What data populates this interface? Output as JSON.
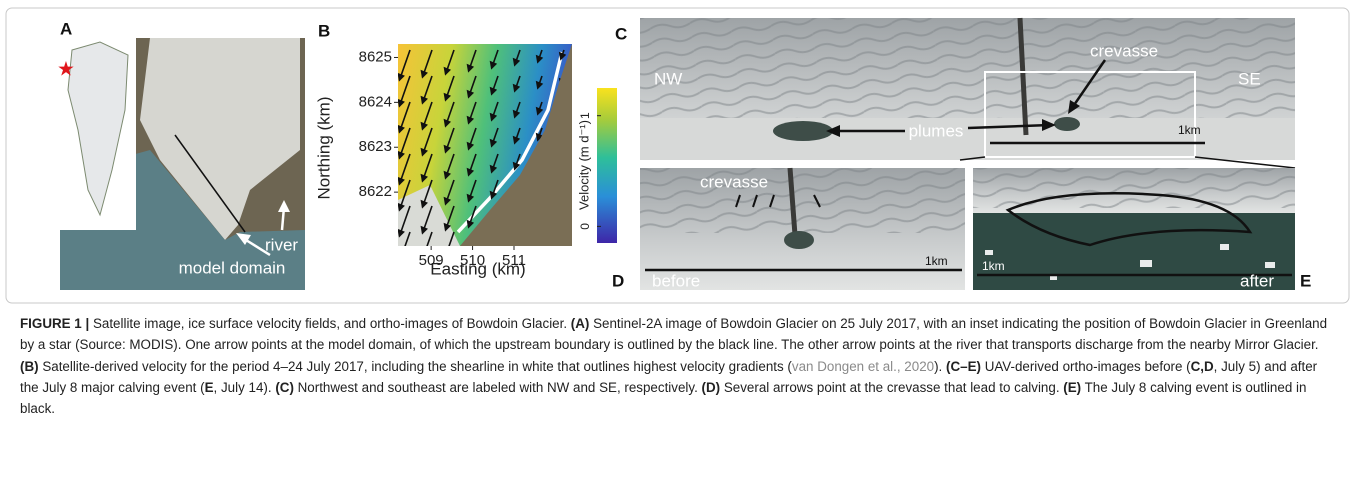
{
  "panels": {
    "a": {
      "label": "A",
      "river": "river",
      "model_domain": "model domain"
    },
    "b": {
      "label": "B",
      "ylabel": "Northing (km)",
      "xlabel": "Easting (km)",
      "yticks": [
        8622,
        8623,
        8624,
        8625
      ],
      "ylim": [
        8620.8,
        8625.3
      ],
      "xticks": [
        509,
        510,
        511
      ],
      "xlim": [
        508.2,
        512.4
      ],
      "colorbar": {
        "label": "Velocity (m d⁻¹)",
        "ticks": [
          0,
          1
        ],
        "lim": [
          -0.15,
          1.25
        ]
      }
    },
    "c": {
      "label": "C",
      "nw": "NW",
      "se": "SE",
      "crevasse": "crevasse",
      "plumes": "plumes",
      "scale": "1km"
    },
    "d": {
      "label": "D",
      "crevasse": "crevasse",
      "before": "before",
      "scale": "1km"
    },
    "e": {
      "label": "E",
      "after": "after",
      "scale": "1km"
    }
  },
  "caption": {
    "runs": [
      {
        "text": "FIGURE 1 | ",
        "style": "bold"
      },
      {
        "text": "Satellite image, ice surface velocity fields, and ortho-images of Bowdoin Glacier. ",
        "style": "normal"
      },
      {
        "text": "(A)",
        "style": "bold"
      },
      {
        "text": " Sentinel-2A image of Bowdoin Glacier on 25 July 2017, with an inset indicating the position of Bowdoin Glacier in Greenland by a star (Source: MODIS). One arrow points at the model domain, of which the upstream boundary is outlined by the black line. The other arrow points at the river that transports discharge from the nearby Mirror Glacier. ",
        "style": "normal"
      },
      {
        "text": "(B)",
        "style": "bold"
      },
      {
        "text": " Satellite-derived velocity for the period 4–24 July 2017, including the shearline in white that outlines highest velocity gradients (",
        "style": "normal"
      },
      {
        "text": "van Dongen et al., 2020",
        "style": "link"
      },
      {
        "text": "). ",
        "style": "normal"
      },
      {
        "text": "(C–E)",
        "style": "bold"
      },
      {
        "text": " UAV-derived ortho-images before (",
        "style": "normal"
      },
      {
        "text": "C,D",
        "style": "bold"
      },
      {
        "text": ", July 5) and after the July 8 major calving event (",
        "style": "normal"
      },
      {
        "text": "E",
        "style": "bold"
      },
      {
        "text": ", July 14). ",
        "style": "normal"
      },
      {
        "text": "(C)",
        "style": "bold"
      },
      {
        "text": " Northwest and southeast are labeled with NW and SE, respectively. ",
        "style": "normal"
      },
      {
        "text": "(D)",
        "style": "bold"
      },
      {
        "text": " Several arrows point at the crevasse that lead to calving. ",
        "style": "normal"
      },
      {
        "text": "(E)",
        "style": "bold"
      },
      {
        "text": " The July 8 calving event is outlined in black.",
        "style": "normal"
      }
    ]
  }
}
